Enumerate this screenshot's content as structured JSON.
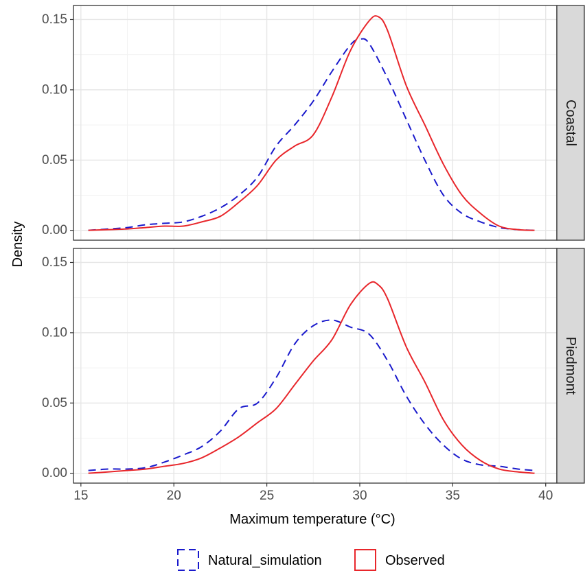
{
  "chart_data": {
    "type": "line",
    "xlabel": "Maximum temperature (°C)",
    "ylabel": "Density",
    "xlim": [
      14.6,
      40.6
    ],
    "ylim": [
      -0.007,
      0.16
    ],
    "x_ticks": [
      15,
      20,
      25,
      30,
      35,
      40
    ],
    "y_ticks": [
      0.0,
      0.05,
      0.1,
      0.15
    ],
    "x_tick_labels": [
      "15",
      "20",
      "25",
      "30",
      "35",
      "40"
    ],
    "y_tick_labels": [
      "0.00",
      "0.05",
      "0.10",
      "0.15"
    ],
    "grid": true,
    "legend_position": "bottom",
    "legend": [
      {
        "label": "Natural_simulation",
        "color": "#1a1acc",
        "style": "dashed"
      },
      {
        "label": "Observed",
        "color": "#e8262b",
        "style": "solid"
      }
    ],
    "panels": [
      {
        "strip": "Coastal",
        "series": [
          {
            "name": "Natural_simulation",
            "x": [
              15.4,
              16.5,
              17.5,
              18.5,
              19.5,
              20.5,
              21.5,
              22.5,
              23.5,
              24.5,
              25.5,
              26.5,
              27.5,
              28.5,
              29.5,
              30.0,
              30.5,
              31.5,
              32.5,
              33.5,
              34.5,
              35.5,
              36.5,
              37.5,
              38.5,
              39.4
            ],
            "y": [
              0.0,
              0.001,
              0.002,
              0.004,
              0.005,
              0.006,
              0.01,
              0.016,
              0.025,
              0.038,
              0.06,
              0.075,
              0.092,
              0.113,
              0.132,
              0.136,
              0.133,
              0.108,
              0.079,
              0.05,
              0.025,
              0.012,
              0.006,
              0.002,
              0.0005,
              0.0
            ]
          },
          {
            "name": "Observed",
            "x": [
              15.4,
              16.5,
              17.5,
              18.5,
              19.5,
              20.5,
              21.5,
              22.5,
              23.5,
              24.5,
              25.5,
              26.5,
              27.5,
              28.5,
              29.5,
              30.5,
              31.0,
              31.5,
              32.5,
              33.5,
              34.5,
              35.5,
              36.5,
              37.5,
              38.5,
              39.4
            ],
            "y": [
              0.0,
              0.0005,
              0.001,
              0.002,
              0.003,
              0.003,
              0.006,
              0.01,
              0.02,
              0.032,
              0.05,
              0.06,
              0.068,
              0.095,
              0.128,
              0.149,
              0.152,
              0.142,
              0.103,
              0.075,
              0.047,
              0.025,
              0.012,
              0.003,
              0.0005,
              0.0
            ]
          }
        ]
      },
      {
        "strip": "Piedmont",
        "series": [
          {
            "name": "Natural_simulation",
            "x": [
              15.4,
              16.5,
              17.5,
              18.5,
              19.5,
              20.5,
              21.5,
              22.5,
              23.5,
              24.5,
              25.5,
              26.5,
              27.5,
              28.5,
              29.5,
              30.5,
              31.5,
              32.5,
              33.5,
              34.5,
              35.5,
              36.5,
              37.5,
              38.5,
              39.4
            ],
            "y": [
              0.002,
              0.003,
              0.003,
              0.004,
              0.008,
              0.013,
              0.019,
              0.03,
              0.046,
              0.05,
              0.068,
              0.092,
              0.105,
              0.109,
              0.104,
              0.099,
              0.08,
              0.055,
              0.035,
              0.02,
              0.01,
              0.006,
              0.005,
              0.003,
              0.002
            ]
          },
          {
            "name": "Observed",
            "x": [
              15.4,
              16.5,
              17.5,
              18.5,
              19.5,
              20.5,
              21.5,
              22.5,
              23.5,
              24.5,
              25.5,
              26.5,
              27.5,
              28.5,
              29.5,
              30.5,
              31.0,
              31.5,
              32.5,
              33.5,
              34.5,
              35.5,
              36.5,
              37.5,
              38.5,
              39.4
            ],
            "y": [
              0.0,
              0.001,
              0.002,
              0.003,
              0.005,
              0.007,
              0.011,
              0.018,
              0.026,
              0.036,
              0.046,
              0.063,
              0.08,
              0.095,
              0.12,
              0.135,
              0.134,
              0.124,
              0.09,
              0.065,
              0.038,
              0.02,
              0.009,
              0.003,
              0.001,
              0.0
            ]
          }
        ]
      }
    ]
  }
}
